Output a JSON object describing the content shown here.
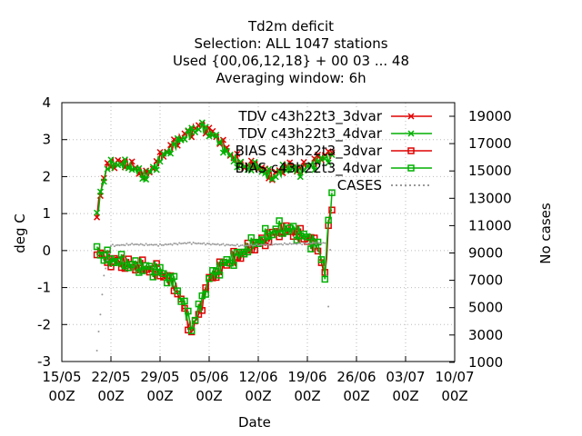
{
  "title_lines": [
    "Td2m deficit",
    "Selection: ALL    1047 stations",
    "Used {00,06,12,18} + 00 03 ... 48",
    "Averaging window:  6h"
  ],
  "chart_data": {
    "type": "line",
    "xlabel": "Date",
    "ylabel": "deg C",
    "y2label": "No cases",
    "ylim": [
      -3,
      4
    ],
    "y2lim": [
      1000,
      20000
    ],
    "x_ticks": [
      "15/05\n00Z",
      "22/05\n00Z",
      "29/05\n00Z",
      "05/06\n00Z",
      "12/06\n00Z",
      "19/06\n00Z",
      "26/06\n00Z",
      "03/07\n00Z",
      "10/07\n00Z"
    ],
    "y_ticks": [
      "4",
      "3",
      "2",
      "1",
      "0",
      "-1",
      "-2",
      "-3"
    ],
    "y2_ticks": [
      "19000",
      "17000",
      "15000",
      "13000",
      "11000",
      "9000",
      "7000",
      "5000",
      "3000",
      "1000"
    ],
    "legend": [
      {
        "label": "TDV c43h22t3_3dvar",
        "color": "#e00000",
        "marker": "x"
      },
      {
        "label": "TDV c43h22t3_4dvar",
        "color": "#00b000",
        "marker": "x"
      },
      {
        "label": "BIAS c43h22t3_3dvar",
        "color": "#e00000",
        "marker": "square"
      },
      {
        "label": "BIAS c43h22t3_4dvar",
        "color": "#00b000",
        "marker": "square"
      },
      {
        "label": "CASES",
        "color": "#999999",
        "marker": "dots"
      }
    ],
    "x_start_day": 20,
    "x_end_day": 53.5,
    "step_days": 0.25,
    "series": [
      {
        "name": "TDV c43h22t3_3dvar",
        "segments": [
          {
            "day": 20.0,
            "value": 0.9
          },
          {
            "day": 20.5,
            "value": 1.6
          },
          {
            "day": 21.5,
            "value": 2.3
          },
          {
            "day": 23.0,
            "value": 2.4
          },
          {
            "day": 25.0,
            "value": 2.3
          },
          {
            "day": 27.0,
            "value": 2.0
          },
          {
            "day": 29.0,
            "value": 2.5
          },
          {
            "day": 31.0,
            "value": 2.9
          },
          {
            "day": 33.0,
            "value": 3.2
          },
          {
            "day": 35.0,
            "value": 3.4
          },
          {
            "day": 37.0,
            "value": 3.1
          },
          {
            "day": 39.0,
            "value": 2.6
          },
          {
            "day": 41.0,
            "value": 2.3
          },
          {
            "day": 43.0,
            "value": 2.3
          },
          {
            "day": 45.0,
            "value": 2.0
          },
          {
            "day": 47.0,
            "value": 2.3
          },
          {
            "day": 49.0,
            "value": 2.2
          },
          {
            "day": 51.0,
            "value": 2.4
          },
          {
            "day": 52.5,
            "value": 2.6
          },
          {
            "day": 53.5,
            "value": 2.6
          }
        ]
      },
      {
        "name": "TDV c43h22t3_4dvar",
        "segments": [
          {
            "day": 20.0,
            "value": 0.9
          },
          {
            "day": 20.5,
            "value": 1.55
          },
          {
            "day": 21.5,
            "value": 2.25
          },
          {
            "day": 23.0,
            "value": 2.35
          },
          {
            "day": 25.0,
            "value": 2.25
          },
          {
            "day": 27.0,
            "value": 2.0
          },
          {
            "day": 29.0,
            "value": 2.45
          },
          {
            "day": 31.0,
            "value": 2.85
          },
          {
            "day": 33.0,
            "value": 3.15
          },
          {
            "day": 35.0,
            "value": 3.35
          },
          {
            "day": 37.0,
            "value": 3.05
          },
          {
            "day": 39.0,
            "value": 2.55
          },
          {
            "day": 41.0,
            "value": 2.25
          },
          {
            "day": 43.0,
            "value": 2.25
          },
          {
            "day": 45.0,
            "value": 1.95
          },
          {
            "day": 47.0,
            "value": 2.25
          },
          {
            "day": 49.0,
            "value": 2.15
          },
          {
            "day": 51.0,
            "value": 2.35
          },
          {
            "day": 52.5,
            "value": 2.5
          },
          {
            "day": 53.5,
            "value": 2.5
          }
        ]
      },
      {
        "name": "BIAS c43h22t3_3dvar",
        "segments": [
          {
            "day": 20.0,
            "value": 0.05
          },
          {
            "day": 21.0,
            "value": -0.2
          },
          {
            "day": 23.0,
            "value": -0.3
          },
          {
            "day": 25.0,
            "value": -0.4
          },
          {
            "day": 27.0,
            "value": -0.5
          },
          {
            "day": 29.0,
            "value": -0.6
          },
          {
            "day": 31.0,
            "value": -0.9
          },
          {
            "day": 32.5,
            "value": -1.6
          },
          {
            "day": 33.5,
            "value": -2.2
          },
          {
            "day": 34.5,
            "value": -1.7
          },
          {
            "day": 36.0,
            "value": -0.8
          },
          {
            "day": 38.0,
            "value": -0.4
          },
          {
            "day": 40.0,
            "value": -0.2
          },
          {
            "day": 42.0,
            "value": 0.1
          },
          {
            "day": 44.0,
            "value": 0.3
          },
          {
            "day": 46.0,
            "value": 0.55
          },
          {
            "day": 48.0,
            "value": 0.5
          },
          {
            "day": 50.0,
            "value": 0.3
          },
          {
            "day": 51.5,
            "value": 0.1
          },
          {
            "day": 52.5,
            "value": -0.7
          },
          {
            "day": 53.0,
            "value": 0.6
          },
          {
            "day": 53.5,
            "value": 1.3
          }
        ]
      },
      {
        "name": "BIAS c43h22t3_4dvar",
        "segments": [
          {
            "day": 20.0,
            "value": 0.05
          },
          {
            "day": 21.0,
            "value": -0.2
          },
          {
            "day": 23.0,
            "value": -0.3
          },
          {
            "day": 25.0,
            "value": -0.4
          },
          {
            "day": 27.0,
            "value": -0.45
          },
          {
            "day": 29.0,
            "value": -0.55
          },
          {
            "day": 31.0,
            "value": -0.85
          },
          {
            "day": 32.5,
            "value": -1.5
          },
          {
            "day": 33.5,
            "value": -2.1
          },
          {
            "day": 34.5,
            "value": -1.6
          },
          {
            "day": 36.0,
            "value": -0.75
          },
          {
            "day": 38.0,
            "value": -0.35
          },
          {
            "day": 40.0,
            "value": -0.15
          },
          {
            "day": 42.0,
            "value": 0.15
          },
          {
            "day": 44.0,
            "value": 0.35
          },
          {
            "day": 46.0,
            "value": 0.6
          },
          {
            "day": 48.0,
            "value": 0.55
          },
          {
            "day": 50.0,
            "value": 0.35
          },
          {
            "day": 51.5,
            "value": 0.15
          },
          {
            "day": 52.5,
            "value": -0.6
          },
          {
            "day": 53.0,
            "value": 0.7
          },
          {
            "day": 53.5,
            "value": 1.45
          }
        ]
      },
      {
        "name": "CASES",
        "segments": [
          {
            "day": 20.0,
            "value": 1800
          },
          {
            "day": 20.5,
            "value": 4500
          },
          {
            "day": 21.0,
            "value": 7300
          },
          {
            "day": 22.0,
            "value": 9500
          },
          {
            "day": 25.0,
            "value": 9600
          },
          {
            "day": 29.0,
            "value": 9550
          },
          {
            "day": 33.0,
            "value": 9700
          },
          {
            "day": 37.0,
            "value": 9600
          },
          {
            "day": 41.0,
            "value": 9500
          },
          {
            "day": 45.0,
            "value": 9600
          },
          {
            "day": 49.0,
            "value": 9650
          },
          {
            "day": 52.5,
            "value": 9700
          },
          {
            "day": 53.0,
            "value": 5000
          },
          {
            "day": 53.5,
            "value": 13500
          }
        ]
      }
    ]
  }
}
